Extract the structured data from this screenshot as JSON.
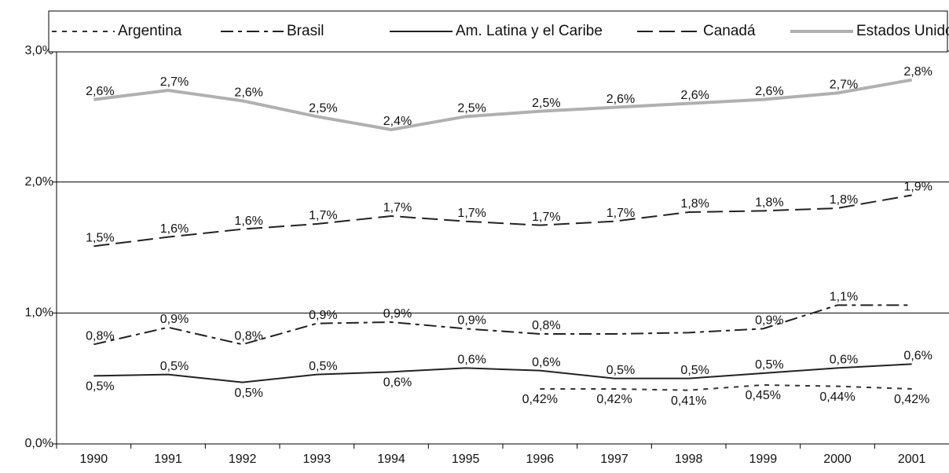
{
  "chart_data": {
    "type": "line",
    "categories": [
      "1990",
      "1991",
      "1992",
      "1993",
      "1994",
      "1995",
      "1996",
      "1997",
      "1998",
      "1999",
      "2000",
      "2001"
    ],
    "series": [
      {
        "name": "Argentina",
        "color": "#333333",
        "dash": "6,7",
        "values": [
          null,
          null,
          null,
          null,
          null,
          null,
          0.42,
          0.42,
          0.41,
          0.45,
          0.44,
          0.42
        ],
        "value_labels": [
          null,
          null,
          null,
          null,
          null,
          null,
          "0,42%",
          "0,42%",
          "0,41%",
          "0,45%",
          "0,44%",
          "0,42%"
        ]
      },
      {
        "name": "Brasil",
        "color": "#222222",
        "dash": "16,6,5,6",
        "values": [
          0.76,
          0.89,
          0.76,
          0.92,
          0.93,
          0.88,
          0.84,
          0.84,
          0.85,
          0.88,
          1.06,
          1.06
        ],
        "value_labels": [
          "0,8%",
          "0,9%",
          "0,8%",
          "0,9%",
          "0,9%",
          "0,9%",
          "0,8%",
          null,
          null,
          "0,9%",
          "1,1%",
          null
        ]
      },
      {
        "name": "Am. Latina y el Caribe",
        "color": "#222222",
        "dash": "",
        "values": [
          0.52,
          0.53,
          0.47,
          0.53,
          0.55,
          0.58,
          0.56,
          0.5,
          0.5,
          0.54,
          0.58,
          0.61
        ],
        "value_labels": [
          "0,5%",
          "0,5%",
          "0,5%",
          "0,5%",
          "0,6%",
          "0,6%",
          "0,6%",
          "0,5%",
          "0,5%",
          "0,5%",
          "0,6%",
          "0,6%"
        ]
      },
      {
        "name": "Canadá",
        "color": "#222222",
        "dash": "20,8",
        "values": [
          1.51,
          1.58,
          1.64,
          1.68,
          1.74,
          1.7,
          1.67,
          1.7,
          1.77,
          1.78,
          1.8,
          1.9
        ],
        "value_labels": [
          "1,5%",
          "1,6%",
          "1,6%",
          "1,7%",
          "1,7%",
          "1,7%",
          "1,7%",
          "1,7%",
          "1,8%",
          "1,8%",
          "1,8%",
          "1,9%"
        ]
      },
      {
        "name": "Estados Unidos",
        "color": "#b0b0b0",
        "dash": "",
        "values": [
          2.63,
          2.7,
          2.62,
          2.5,
          2.4,
          2.5,
          2.54,
          2.57,
          2.6,
          2.63,
          2.68,
          2.78
        ],
        "value_labels": [
          "2,6%",
          "2,7%",
          "2,6%",
          "2,5%",
          "2,4%",
          "2,5%",
          "2,5%",
          "2,6%",
          "2,6%",
          "2,6%",
          "2,7%",
          "2,8%"
        ]
      }
    ],
    "ylim": [
      0,
      3
    ],
    "yticks": [
      {
        "value": 0,
        "label": "0,0%"
      },
      {
        "value": 1,
        "label": "1,0%"
      },
      {
        "value": 2,
        "label": "2,0%"
      },
      {
        "value": 3,
        "label": "3,0%"
      }
    ],
    "grid": true,
    "legend": "top"
  }
}
